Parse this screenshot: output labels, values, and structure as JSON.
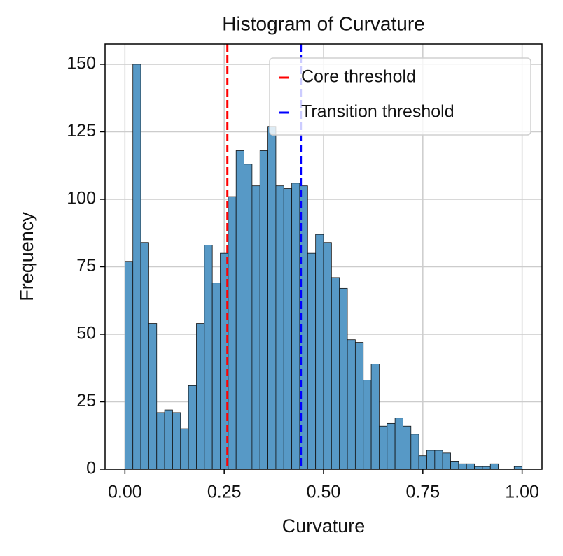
{
  "chart_data": {
    "type": "histogram",
    "title": "Histogram of Curvature",
    "xlabel": "Curvature",
    "ylabel": "Frequency",
    "bins": [
      0,
      0.02,
      0.04,
      0.06,
      0.08,
      0.1,
      0.12,
      0.14,
      0.16,
      0.18,
      0.2,
      0.22,
      0.24,
      0.26,
      0.28,
      0.3,
      0.32,
      0.34,
      0.36,
      0.38,
      0.4,
      0.42,
      0.44,
      0.46,
      0.48,
      0.5,
      0.52,
      0.54,
      0.56,
      0.58,
      0.6,
      0.62,
      0.64,
      0.66,
      0.68,
      0.7,
      0.72,
      0.74,
      0.76,
      0.78,
      0.8,
      0.82,
      0.84,
      0.86,
      0.88,
      0.9,
      0.92,
      0.94,
      0.96,
      0.98,
      1
    ],
    "counts": [
      77,
      150,
      84,
      54,
      21,
      22,
      21,
      15,
      31,
      54,
      83,
      69,
      80,
      101,
      118,
      113,
      105,
      118,
      127,
      105,
      104,
      106,
      105,
      80,
      87,
      84,
      71,
      67,
      48,
      47,
      33,
      39,
      16,
      17,
      19,
      16,
      13,
      5,
      7,
      7,
      6,
      3,
      2,
      2,
      1,
      1,
      2,
      0,
      0,
      1
    ],
    "color": "#5799c6",
    "lines": [
      {
        "name": "Core threshold",
        "color": "#ff0000",
        "x": 0.258
      },
      {
        "name": "Transition threshold",
        "color": "#0000ff",
        "x": 0.443
      }
    ],
    "xlim": [
      -0.05,
      1.05
    ],
    "ylim": [
      0,
      157.5
    ],
    "xticks": [
      {
        "value": 0,
        "label": "0.00"
      },
      {
        "value": 0.25,
        "label": "0.25"
      },
      {
        "value": 0.5,
        "label": "0.50"
      },
      {
        "value": 0.75,
        "label": "0.75"
      },
      {
        "value": 1,
        "label": "1.00"
      }
    ],
    "yticks": [
      0,
      25,
      50,
      75,
      100,
      125,
      150
    ],
    "grid": true,
    "legend_position": "upper right"
  }
}
